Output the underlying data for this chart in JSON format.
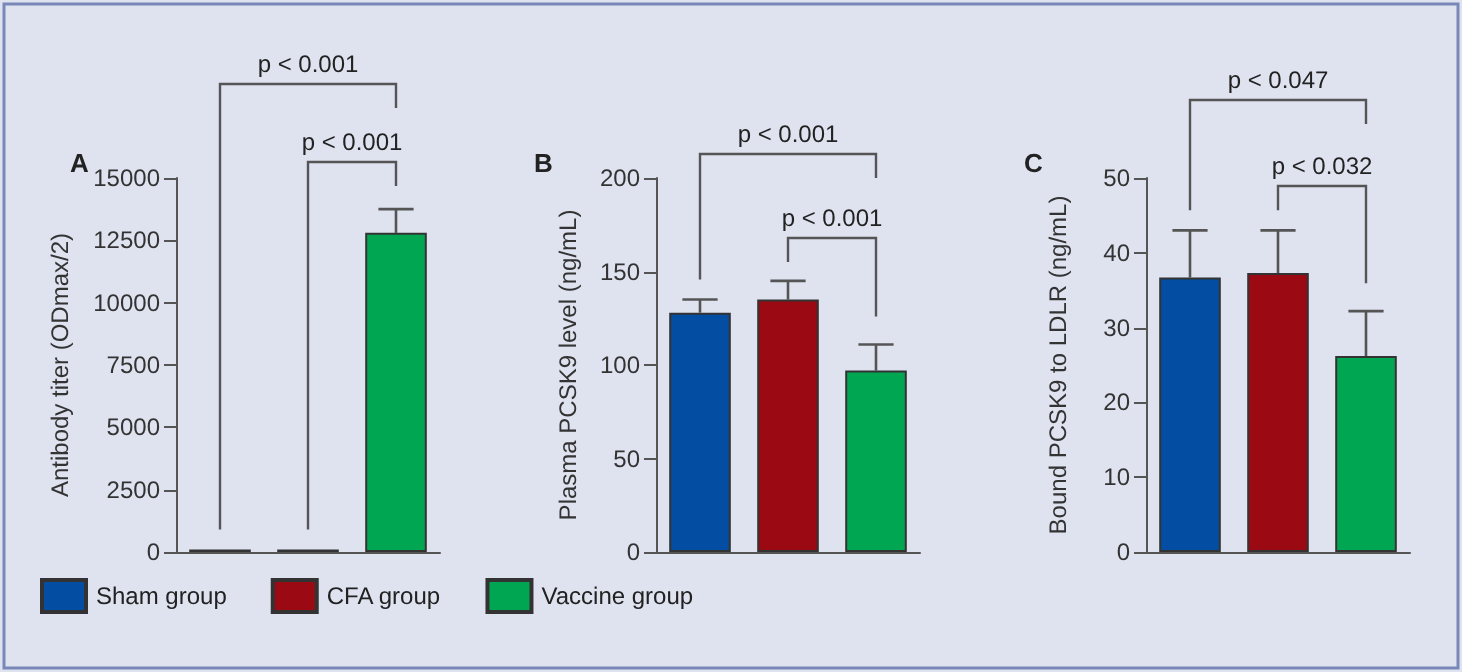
{
  "chart_data": [
    {
      "type": "bar",
      "title": "A",
      "ylabel": "Antibody titer (ODmax/2)",
      "categories": [
        null,
        null,
        null
      ],
      "series": [
        {
          "name": "Sham group",
          "color": "#034ea2",
          "values": [
            100,
            null,
            null
          ],
          "errors": [
            null,
            null,
            null
          ]
        },
        {
          "name": "CFA group",
          "color": "#9b0a12",
          "values": [
            null,
            100,
            null
          ],
          "errors": [
            null,
            null,
            null
          ]
        },
        {
          "name": "Vaccine group",
          "color": "#00a651",
          "values": [
            null,
            null,
            12800
          ],
          "errors": [
            null,
            null,
            [
              12800,
              13750
            ]
          ]
        }
      ],
      "ylim": [
        0,
        15000
      ],
      "yticks": [
        0,
        2500,
        5000,
        7500,
        10000,
        12500,
        15000
      ],
      "tick_labels": "y",
      "grid": false,
      "legend": "bottom",
      "annotations": [
        "p < 0.001",
        "p < 0.001"
      ]
    },
    {
      "type": "bar",
      "title": "B",
      "ylabel": "Plasma PCSK9 level (ng/mL)",
      "categories": [
        null,
        null,
        null
      ],
      "series": [
        {
          "color": "#034ea2",
          "values": [
            128,
            null,
            null
          ],
          "errors": [
            [
              128,
              135
            ],
            null,
            null
          ]
        },
        {
          "color": "#9b0a12",
          "values": [
            null,
            135,
            null
          ],
          "errors": [
            null,
            [
              135,
              145
            ],
            null
          ]
        },
        {
          "color": "#00a651",
          "values": [
            null,
            null,
            97
          ],
          "errors": [
            null,
            null,
            [
              97,
              111
            ]
          ]
        }
      ],
      "ylim": [
        0,
        200
      ],
      "yticks": [
        0,
        50,
        100,
        150,
        200
      ],
      "tick_labels": "y",
      "grid": false,
      "annotations": [
        "p < 0.001",
        "p < 0.001"
      ]
    },
    {
      "type": "bar",
      "title": "C",
      "ylabel": "Bound PCSK9 to LDLR (ng/mL)",
      "categories": [
        null,
        null,
        null
      ],
      "series": [
        {
          "color": "#034ea2",
          "values": [
            36.7,
            null,
            null
          ],
          "errors": [
            [
              36.7,
              43
            ],
            null,
            null
          ]
        },
        {
          "color": "#9b0a12",
          "values": [
            null,
            37.3,
            null
          ],
          "errors": [
            null,
            [
              37.3,
              43
            ],
            null
          ]
        },
        {
          "color": "#00a651",
          "values": [
            null,
            null,
            26.2
          ],
          "errors": [
            null,
            null,
            [
              26.2,
              32.2
            ]
          ]
        }
      ],
      "ylim": [
        0,
        50
      ],
      "yticks": [
        0,
        10,
        20,
        30,
        40,
        50
      ],
      "tick_labels": "y",
      "grid": false,
      "annotations": [
        "p < 0.047",
        "p < 0.032"
      ]
    }
  ]
}
